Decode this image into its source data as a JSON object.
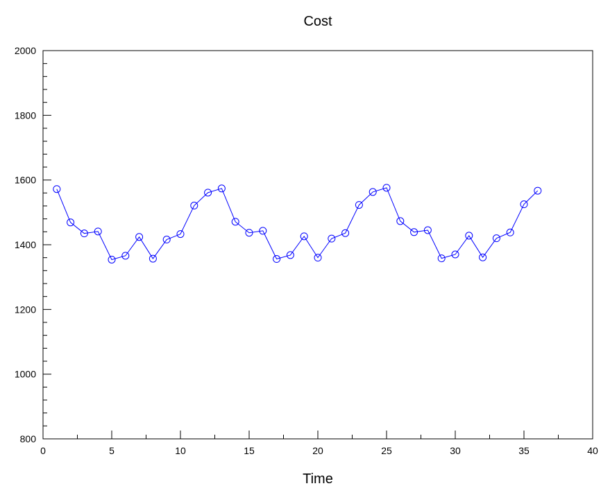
{
  "chart_data": {
    "type": "line",
    "title": "Cost",
    "xlabel": "Time",
    "ylabel": "",
    "xlim": [
      0,
      40
    ],
    "ylim": [
      800,
      2000
    ],
    "x_ticks": [
      0,
      5,
      10,
      15,
      20,
      25,
      30,
      35,
      40
    ],
    "x_tick_labels": [
      "0",
      "5",
      "10",
      "15",
      "20",
      "25",
      "30",
      "35",
      "40"
    ],
    "x_minor_step": 2.5,
    "y_ticks": [
      800,
      1000,
      1200,
      1400,
      1600,
      1800,
      2000
    ],
    "y_tick_labels": [
      "800",
      "1000",
      "1200",
      "1400",
      "1600",
      "1800",
      "2000"
    ],
    "y_minor_step": 40,
    "grid": false,
    "line_color": "#0000ff",
    "marker": "open-circle",
    "series": [
      {
        "x": [
          1,
          2,
          3,
          4,
          5,
          6,
          7,
          8,
          9,
          10,
          11,
          12,
          13,
          14,
          15,
          16,
          17,
          18,
          19,
          20,
          21,
          22,
          23,
          24,
          25,
          26,
          27,
          28,
          29,
          30,
          31,
          32,
          33,
          34,
          35,
          36
        ],
        "values": [
          1572,
          1469,
          1435,
          1441,
          1354,
          1366,
          1424,
          1357,
          1416,
          1433,
          1521,
          1561,
          1574,
          1471,
          1437,
          1443,
          1356,
          1368,
          1426,
          1360,
          1419,
          1436,
          1523,
          1563,
          1576,
          1473,
          1439,
          1445,
          1358,
          1370,
          1428,
          1361,
          1420,
          1438,
          1525,
          1567
        ]
      }
    ]
  }
}
